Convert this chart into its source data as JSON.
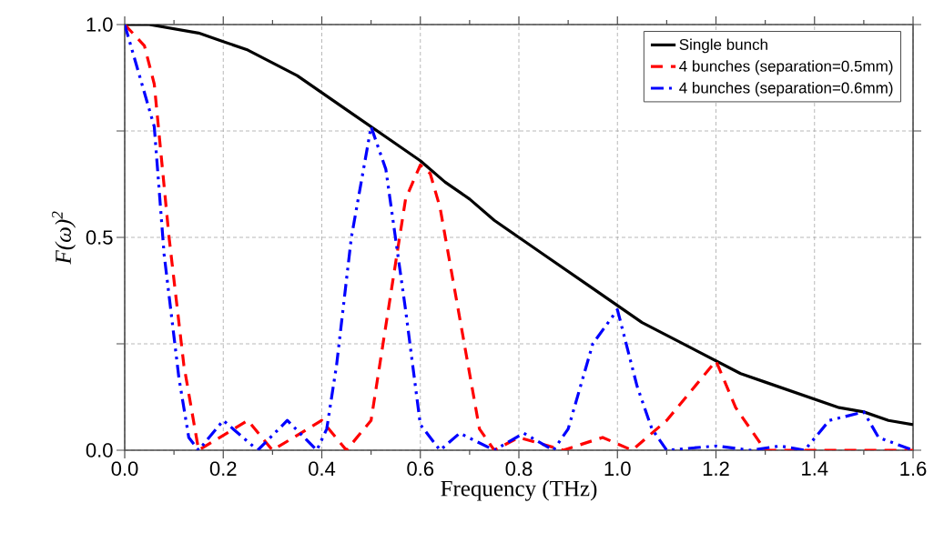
{
  "chart_data": {
    "type": "line",
    "xlabel": "Frequency (THz)",
    "ylabel": "F(ω)$^{2}$",
    "xlim": [
      0,
      1.6
    ],
    "ylim": [
      0,
      1.0
    ],
    "xticks": [
      {
        "value": 0,
        "label": "0.0"
      },
      {
        "value": 0.2,
        "label": "0.2"
      },
      {
        "value": 0.4,
        "label": "0.4"
      },
      {
        "value": 0.6,
        "label": "0.6"
      },
      {
        "value": 0.8,
        "label": "0.8"
      },
      {
        "value": 1.0,
        "label": "1.0"
      },
      {
        "value": 1.2,
        "label": "1.2"
      },
      {
        "value": 1.4,
        "label": "1.4"
      },
      {
        "value": 1.6,
        "label": "1.6"
      }
    ],
    "yticks": [
      {
        "value": 0,
        "label": "0.0"
      },
      {
        "value": 0.25,
        "label": null
      },
      {
        "value": 0.5,
        "label": "0.5"
      },
      {
        "value": 0.75,
        "label": null
      },
      {
        "value": 1.0,
        "label": "1.0"
      }
    ],
    "grid": true,
    "legend": "top right",
    "marker": "none",
    "series": [
      {
        "name": "Single bunch",
        "color": "#000000",
        "line_style": "solid",
        "x": [
          0,
          0.05,
          0.1,
          0.15,
          0.2,
          0.25,
          0.3,
          0.35,
          0.4,
          0.45,
          0.5,
          0.55,
          0.6,
          0.65,
          0.7,
          0.75,
          0.8,
          0.85,
          0.9,
          0.95,
          1.0,
          1.05,
          1.1,
          1.15,
          1.2,
          1.25,
          1.3,
          1.35,
          1.4,
          1.45,
          1.5,
          1.55,
          1.6
        ],
        "values": [
          1.0,
          1.0,
          0.99,
          0.98,
          0.96,
          0.94,
          0.91,
          0.88,
          0.84,
          0.8,
          0.76,
          0.72,
          0.68,
          0.63,
          0.59,
          0.54,
          0.5,
          0.46,
          0.42,
          0.38,
          0.34,
          0.3,
          0.27,
          0.24,
          0.21,
          0.18,
          0.16,
          0.14,
          0.12,
          0.1,
          0.09,
          0.07,
          0.06
        ]
      },
      {
        "name": "4 bunches (separation=0.5mm)",
        "color": "#ff0000",
        "line_style": "dashed",
        "x": [
          0,
          0.04,
          0.06,
          0.09,
          0.12,
          0.15,
          0.25,
          0.3,
          0.4,
          0.45,
          0.5,
          0.57,
          0.6,
          0.62,
          0.64,
          0.72,
          0.75,
          0.8,
          0.89,
          0.97,
          1.03,
          1.1,
          1.2,
          1.24,
          1.3,
          1.4,
          1.6
        ],
        "values": [
          1.0,
          0.95,
          0.86,
          0.5,
          0.2,
          0.0,
          0.07,
          0.0,
          0.07,
          0.0,
          0.07,
          0.59,
          0.67,
          0.65,
          0.57,
          0.05,
          0.0,
          0.03,
          0.0,
          0.03,
          0.0,
          0.07,
          0.21,
          0.1,
          0.0,
          0.0,
          0.0
        ]
      },
      {
        "name": "4 bunches (separation=0.6mm)",
        "color": "#0000ff",
        "line_style": "dashdotdotted",
        "x": [
          0,
          0.06,
          0.08,
          0.11,
          0.13,
          0.15,
          0.2,
          0.27,
          0.33,
          0.39,
          0.41,
          0.43,
          0.46,
          0.5,
          0.53,
          0.57,
          0.6,
          0.64,
          0.68,
          0.75,
          0.81,
          0.87,
          0.9,
          0.95,
          1.0,
          1.04,
          1.07,
          1.1,
          1.2,
          1.27,
          1.33,
          1.38,
          1.43,
          1.5,
          1.53,
          1.6
        ],
        "values": [
          1.0,
          0.76,
          0.46,
          0.17,
          0.03,
          0.0,
          0.07,
          0.0,
          0.07,
          0.0,
          0.05,
          0.2,
          0.5,
          0.76,
          0.66,
          0.33,
          0.06,
          0.0,
          0.04,
          0.0,
          0.04,
          0.0,
          0.05,
          0.25,
          0.33,
          0.15,
          0.05,
          0.0,
          0.01,
          0.0,
          0.01,
          0.0,
          0.07,
          0.09,
          0.03,
          0.0
        ]
      }
    ]
  }
}
